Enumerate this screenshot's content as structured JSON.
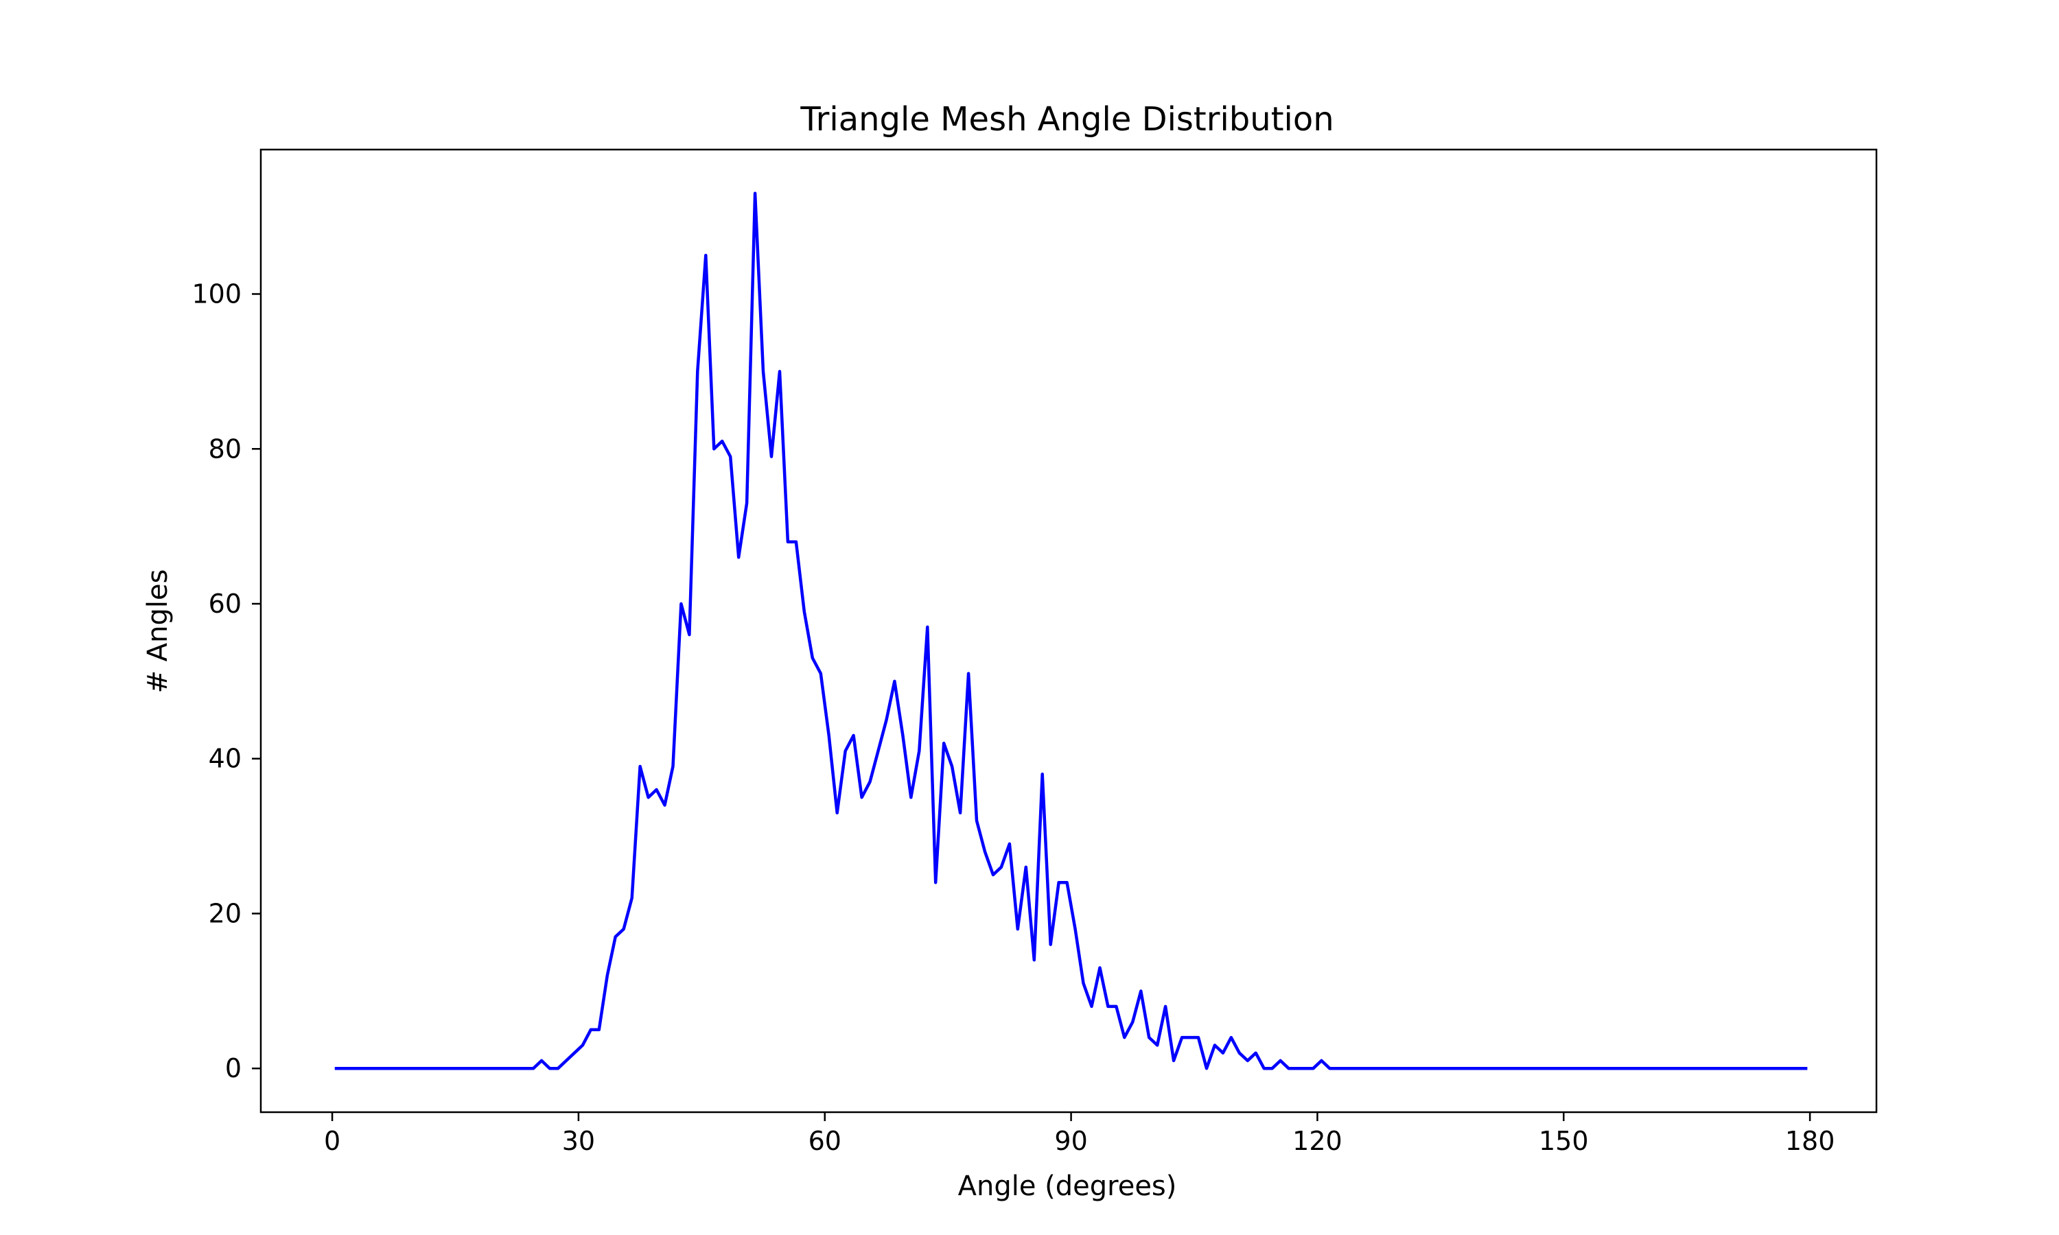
{
  "chart_data": {
    "type": "line",
    "title": "Triangle Mesh Angle Distribution",
    "xlabel": "Angle (degrees)",
    "ylabel": "# Angles",
    "xlim": [
      -8.7,
      188.1
    ],
    "ylim": [
      -5.65,
      118.65
    ],
    "xticks": [
      0,
      30,
      60,
      90,
      120,
      150,
      180
    ],
    "yticks": [
      0,
      20,
      40,
      60,
      80,
      100
    ],
    "grid": false,
    "series": [
      {
        "color": "#0000ff",
        "x": [
          0.5,
          1.5,
          2.5,
          3.5,
          4.5,
          5.5,
          6.5,
          7.5,
          8.5,
          9.5,
          10.5,
          11.5,
          12.5,
          13.5,
          14.5,
          15.5,
          16.5,
          17.5,
          18.5,
          19.5,
          20.5,
          21.5,
          22.5,
          23.5,
          24.5,
          25.5,
          26.5,
          27.5,
          28.5,
          29.5,
          30.5,
          31.5,
          32.5,
          33.5,
          34.5,
          35.5,
          36.5,
          37.5,
          38.5,
          39.5,
          40.5,
          41.5,
          42.5,
          43.5,
          44.5,
          45.5,
          46.5,
          47.5,
          48.5,
          49.5,
          50.5,
          51.5,
          52.5,
          53.5,
          54.5,
          55.5,
          56.5,
          57.5,
          58.5,
          59.5,
          60.5,
          61.5,
          62.5,
          63.5,
          64.5,
          65.5,
          66.5,
          67.5,
          68.5,
          69.5,
          70.5,
          71.5,
          72.5,
          73.5,
          74.5,
          75.5,
          76.5,
          77.5,
          78.5,
          79.5,
          80.5,
          81.5,
          82.5,
          83.5,
          84.5,
          85.5,
          86.5,
          87.5,
          88.5,
          89.5,
          90.5,
          91.5,
          92.5,
          93.5,
          94.5,
          95.5,
          96.5,
          97.5,
          98.5,
          99.5,
          100.5,
          101.5,
          102.5,
          103.5,
          104.5,
          105.5,
          106.5,
          107.5,
          108.5,
          109.5,
          110.5,
          111.5,
          112.5,
          113.5,
          114.5,
          115.5,
          116.5,
          117.5,
          118.5,
          119.5,
          120.5,
          121.5,
          122.5,
          123.5,
          124.5,
          125.5,
          126.5,
          127.5,
          128.5,
          129.5,
          130.5,
          131.5,
          132.5,
          133.5,
          134.5,
          135.5,
          136.5,
          137.5,
          138.5,
          139.5,
          140.5,
          141.5,
          142.5,
          143.5,
          144.5,
          145.5,
          146.5,
          147.5,
          148.5,
          149.5,
          150.5,
          151.5,
          152.5,
          153.5,
          154.5,
          155.5,
          156.5,
          157.5,
          158.5,
          159.5,
          160.5,
          161.5,
          162.5,
          163.5,
          164.5,
          165.5,
          166.5,
          167.5,
          168.5,
          169.5,
          170.5,
          171.5,
          172.5,
          173.5,
          174.5,
          175.5,
          176.5,
          177.5,
          178.5,
          179.5
        ],
        "y": [
          0,
          0,
          0,
          0,
          0,
          0,
          0,
          0,
          0,
          0,
          0,
          0,
          0,
          0,
          0,
          0,
          0,
          0,
          0,
          0,
          0,
          0,
          0,
          0,
          0,
          1,
          0,
          0,
          1,
          2,
          3,
          5,
          5,
          12,
          17,
          18,
          22,
          39,
          35,
          36,
          34,
          39,
          60,
          56,
          90,
          105,
          80,
          81,
          79,
          66,
          73,
          113,
          90,
          79,
          90,
          68,
          68,
          59,
          53,
          51,
          43,
          33,
          41,
          43,
          35,
          37,
          41,
          45,
          50,
          43,
          35,
          41,
          57,
          24,
          42,
          39,
          33,
          51,
          32,
          28,
          25,
          26,
          29,
          18,
          26,
          14,
          38,
          16,
          24,
          24,
          18,
          11,
          8,
          13,
          8,
          8,
          4,
          6,
          10,
          4,
          3,
          8,
          1,
          4,
          4,
          4,
          0,
          3,
          2,
          4,
          2,
          1,
          2,
          0,
          0,
          1,
          0,
          0,
          0,
          0,
          1,
          0,
          0,
          0,
          0,
          0,
          0,
          0,
          0,
          0,
          0,
          0,
          0,
          0,
          0,
          0,
          0,
          0,
          0,
          0,
          0,
          0,
          0,
          0,
          0,
          0,
          0,
          0,
          0,
          0,
          0,
          0,
          0,
          0,
          0,
          0,
          0,
          0,
          0,
          0,
          0,
          0,
          0,
          0,
          0,
          0,
          0,
          0,
          0,
          0,
          0,
          0,
          0,
          0,
          0,
          0,
          0,
          0,
          0,
          0
        ]
      }
    ]
  }
}
